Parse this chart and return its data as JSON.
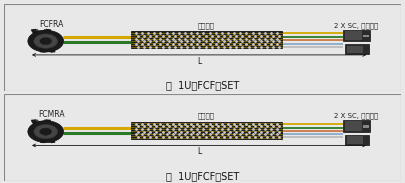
{
  "bg_color": "#e8e8e8",
  "panel_bg": "#f8f8f8",
  "border_color": "#888888",
  "panel1": {
    "label_left": "FCFRA",
    "label_top": "编织套管",
    "label_right": "2 X SC, 尼龙插头",
    "dim_label": "L",
    "caption": "含  1U－FCF－SET"
  },
  "panel2": {
    "label_left": "FCMRA",
    "label_top": "编织套管",
    "label_right": "2 X SC, 尼龙插头",
    "dim_label": "L",
    "caption": "含  1U－FCF－SET"
  },
  "wire_yellow": "#d4a800",
  "wire_green": "#2a7a2a",
  "wire_gray": "#aaaaaa",
  "braid_dark": "#282828",
  "braid_yellow_stripe": "#c8a000",
  "connector_dark": "#222222",
  "connector_mid": "#555555",
  "connector_light": "#888888"
}
